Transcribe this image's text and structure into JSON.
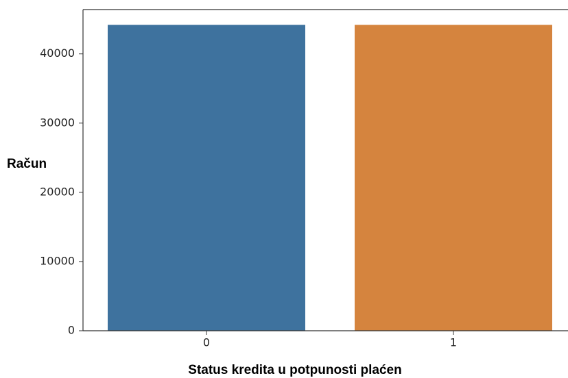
{
  "chart_data": {
    "type": "bar",
    "x_label": "Status kredita u potpunosti plaćen",
    "y_label": "Račun",
    "categories": [
      "0",
      "1"
    ],
    "values": [
      44200,
      44200
    ],
    "colors": [
      "#3e729e",
      "#d5843e"
    ],
    "ylim": [
      0,
      46400
    ],
    "yticks": [
      0,
      10000,
      20000,
      30000,
      40000
    ]
  }
}
